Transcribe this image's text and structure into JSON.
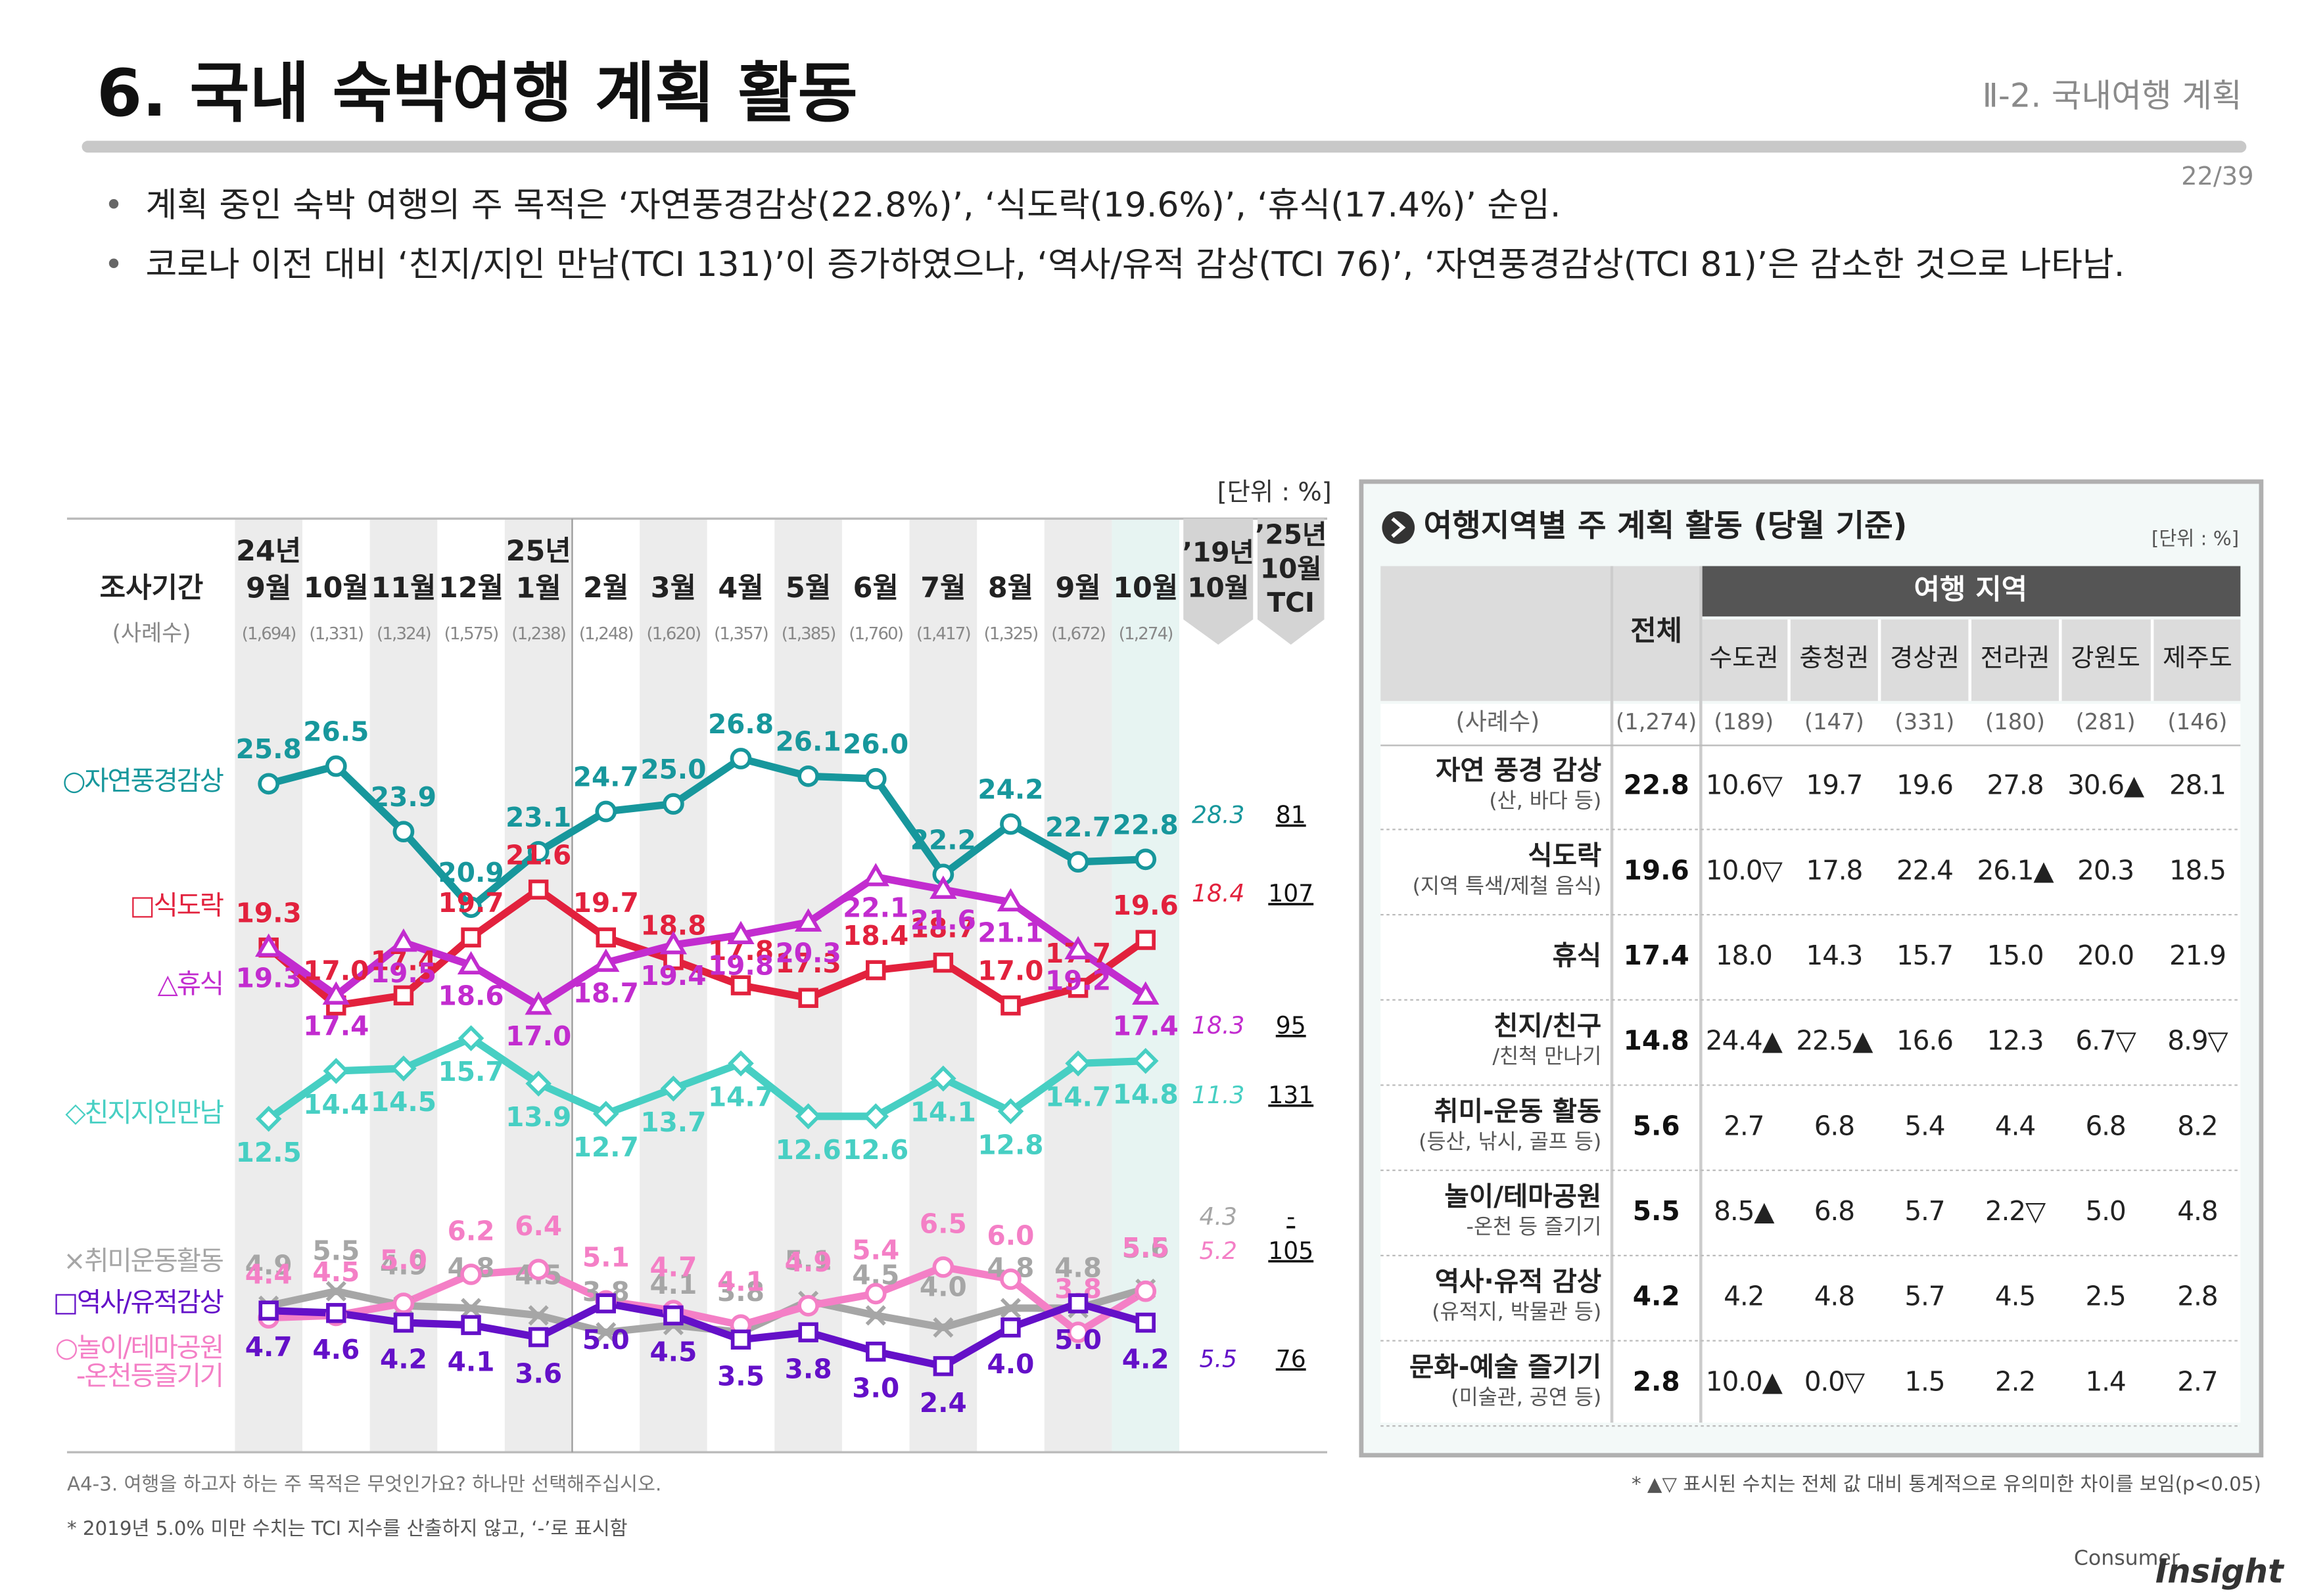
{
  "header": {
    "title": "6. 국내 숙박여행 계획 활동",
    "section": "Ⅱ-2. 국내여행 계획",
    "page": "22/39"
  },
  "bullets": [
    "계획 중인 숙박 여행의 주 목적은 ‘자연풍경감상(22.8%)’, ‘식도락(19.6%)’, ‘휴식(17.4%)’ 순임.",
    "코로나 이전 대비 ‘친지/지인 만남(TCI 131)’이 증가하였으나, ‘역사/유적 감상(TCI 76)’, ‘자연풍경감상(TCI 81)’은 감소한 것으로 나타남."
  ],
  "chart_data": {
    "type": "line",
    "unit": "[단위 : %]",
    "period_label": "조사기간",
    "sample_label": "(사례수)",
    "categories": [
      "24년\n9월",
      "10월",
      "11월",
      "12월",
      "25년\n1월",
      "2월",
      "3월",
      "4월",
      "5월",
      "6월",
      "7월",
      "8월",
      "9월",
      "10월"
    ],
    "sample_sizes": [
      "(1,694)",
      "(1,331)",
      "(1,324)",
      "(1,575)",
      "(1,238)",
      "(1,248)",
      "(1,620)",
      "(1,357)",
      "(1,385)",
      "(1,760)",
      "(1,417)",
      "(1,325)",
      "(1,672)",
      "(1,274)"
    ],
    "header_2019": "’19년\n10월",
    "header_tci": "’25년\n10월\nTCI",
    "series": [
      {
        "name": "○자연풍경감상",
        "color": "#17979c",
        "marker": "circle",
        "values": [
          25.8,
          26.5,
          23.9,
          20.9,
          23.1,
          24.7,
          25.0,
          26.8,
          26.1,
          26.0,
          22.2,
          24.2,
          22.7,
          22.8
        ],
        "value_labels": [
          "25.8",
          "26.5",
          "23.9",
          "20.9",
          "23.1",
          "24.7",
          "25.0",
          "26.8",
          "26.1",
          "26.0",
          "22.2",
          "24.2",
          "22.7",
          "22.8"
        ],
        "value_2019": 28.3,
        "tci": 81
      },
      {
        "name": "□식도락",
        "color": "#e2213d",
        "marker": "square",
        "values": [
          19.3,
          17.0,
          17.4,
          19.7,
          21.6,
          19.7,
          18.8,
          17.8,
          17.3,
          18.4,
          18.7,
          17.0,
          17.7,
          19.6
        ],
        "value_labels": [
          "19.3",
          "17.0",
          "17.4",
          "19.7",
          "21.6",
          "19.7",
          "18.8",
          "17.8",
          "17.3",
          "18.4",
          "18.7",
          "17.0",
          "17.7",
          "19.6"
        ],
        "value_2019": 18.4,
        "tci": 107
      },
      {
        "name": "△휴식",
        "color": "#c22ccf",
        "marker": "triangle",
        "values": [
          19.3,
          17.4,
          19.5,
          18.6,
          17.0,
          18.7,
          19.4,
          19.8,
          20.3,
          22.1,
          21.6,
          21.1,
          19.2,
          17.4
        ],
        "value_labels": [
          "19.3",
          "17.4",
          "19.5",
          "18.6",
          "17.0",
          "18.7",
          "19.4",
          "19.8",
          "20.3",
          "22.1",
          "21.6",
          "21.1",
          "19.2",
          "17.4"
        ],
        "value_2019": 18.3,
        "tci": 95
      },
      {
        "name": "◇친지지인만남",
        "color": "#47cfc3",
        "marker": "diamond",
        "values": [
          12.5,
          14.4,
          14.5,
          15.7,
          13.9,
          12.7,
          13.7,
          14.7,
          12.6,
          12.6,
          14.1,
          12.8,
          14.7,
          14.8
        ],
        "value_labels": [
          "12.5",
          "14.4",
          "14.5",
          "15.7",
          "13.9",
          "12.7",
          "13.7",
          "14.7",
          "12.6",
          "12.6",
          "14.1",
          "12.8",
          "14.7",
          "14.8"
        ],
        "value_2019": 11.3,
        "tci": 131
      },
      {
        "name": "×취미운동활동",
        "color": "#a6a6a6",
        "marker": "x",
        "values": [
          4.9,
          5.5,
          4.9,
          4.8,
          4.5,
          3.8,
          4.1,
          3.8,
          5.1,
          4.5,
          4.0,
          4.8,
          4.8,
          5.6
        ],
        "value_labels": [
          "4.9",
          "5.5",
          "4.9",
          "4.8",
          "4.5",
          "3.8",
          "4.1",
          "3.8",
          "5.1",
          "4.5",
          "4.0",
          "4.8",
          "4.8",
          "5.6"
        ],
        "value_2019": 4.3,
        "tci": "-"
      },
      {
        "name": "○놀이/테마공원\n-온천등즐기기",
        "color": "#f47fc6",
        "marker": "circle",
        "values": [
          4.4,
          4.5,
          5.0,
          6.2,
          6.4,
          5.1,
          4.7,
          4.1,
          4.9,
          5.4,
          6.5,
          6.0,
          3.8,
          5.5
        ],
        "value_labels": [
          "4.4",
          "4.5",
          "5.0",
          "6.2",
          "6.4",
          "5.1",
          "4.7",
          "4.1",
          "4.9",
          "5.4",
          "6.5",
          "6.0",
          "3.8",
          "5.5"
        ],
        "value_2019": 5.2,
        "tci": 105
      },
      {
        "name": "□역사/유적감상",
        "color": "#6410c8",
        "marker": "square",
        "values": [
          4.7,
          4.6,
          4.2,
          4.1,
          3.6,
          5.0,
          4.5,
          3.5,
          3.8,
          3.0,
          2.4,
          4.0,
          5.0,
          4.2
        ],
        "value_labels": [
          "4.7",
          "4.6",
          "4.2",
          "4.1",
          "3.6",
          "5.0",
          "4.5",
          "3.5",
          "3.8",
          "3.0",
          "2.4",
          "4.0",
          "5.0",
          "4.2"
        ],
        "value_2019": 5.5,
        "tci": 76
      }
    ]
  },
  "table": {
    "title": "여행지역별 주 계획 활동 (당월 기준)",
    "unit": "[단위 : %]",
    "total_header": "전체",
    "group_header": "여행 지역",
    "regions": [
      "수도권",
      "충청권",
      "경상권",
      "전라권",
      "강원도",
      "제주도"
    ],
    "sample_row": {
      "label": "(사례수)",
      "total": "(1,274)",
      "cells": [
        "(189)",
        "(147)",
        "(331)",
        "(180)",
        "(281)",
        "(146)"
      ]
    },
    "rows": [
      {
        "label": "자연 풍경 감상\n(산, 바다 등)",
        "total": "22.8",
        "cells": [
          "10.6▽",
          "19.7",
          "19.6",
          "27.8",
          "30.6▲",
          "28.1"
        ]
      },
      {
        "label": "식도락\n(지역 특색/제철 음식)",
        "total": "19.6",
        "cells": [
          "10.0▽",
          "17.8",
          "22.4",
          "26.1▲",
          "20.3",
          "18.5"
        ]
      },
      {
        "label": "휴식",
        "total": "17.4",
        "cells": [
          "18.0",
          "14.3",
          "15.7",
          "15.0",
          "20.0",
          "21.9"
        ]
      },
      {
        "label": "친지/친구\n/친척 만나기",
        "total": "14.8",
        "cells": [
          "24.4▲",
          "22.5▲",
          "16.6",
          "12.3",
          "6.7▽",
          "8.9▽"
        ]
      },
      {
        "label": "취미-운동 활동\n(등산, 낚시, 골프 등)",
        "total": "5.6",
        "cells": [
          "2.7",
          "6.8",
          "5.4",
          "4.4",
          "6.8",
          "8.2"
        ]
      },
      {
        "label": "놀이/테마공원\n-온천 등 즐기기",
        "total": "5.5",
        "cells": [
          "8.5▲",
          "6.8",
          "5.7",
          "2.2▽",
          "5.0",
          "4.8"
        ]
      },
      {
        "label": "역사·유적 감상\n(유적지, 박물관 등)",
        "total": "4.2",
        "cells": [
          "4.2",
          "4.8",
          "5.7",
          "4.5",
          "2.5",
          "2.8"
        ]
      },
      {
        "label": "문화-예술 즐기기\n(미술관, 공연 등)",
        "total": "2.8",
        "cells": [
          "10.0▲",
          "0.0▽",
          "1.5",
          "2.2",
          "1.4",
          "2.7"
        ]
      }
    ]
  },
  "footnotes": {
    "question": "A4-3. 여행을 하고자 하는 주 목적은 무엇인가요? 하나만 선택해주십시오.",
    "tci_note": "* 2019년 5.0% 미만 수치는 TCI 지수를 산출하지 않고, ‘-’로 표시함",
    "sig_note": "* ▲▽ 표시된 수치는 전체 값 대비 통계적으로 유의미한 차이를 보임(p<0.05)"
  },
  "logo": {
    "first": "Consumer",
    "second": "Insight"
  }
}
